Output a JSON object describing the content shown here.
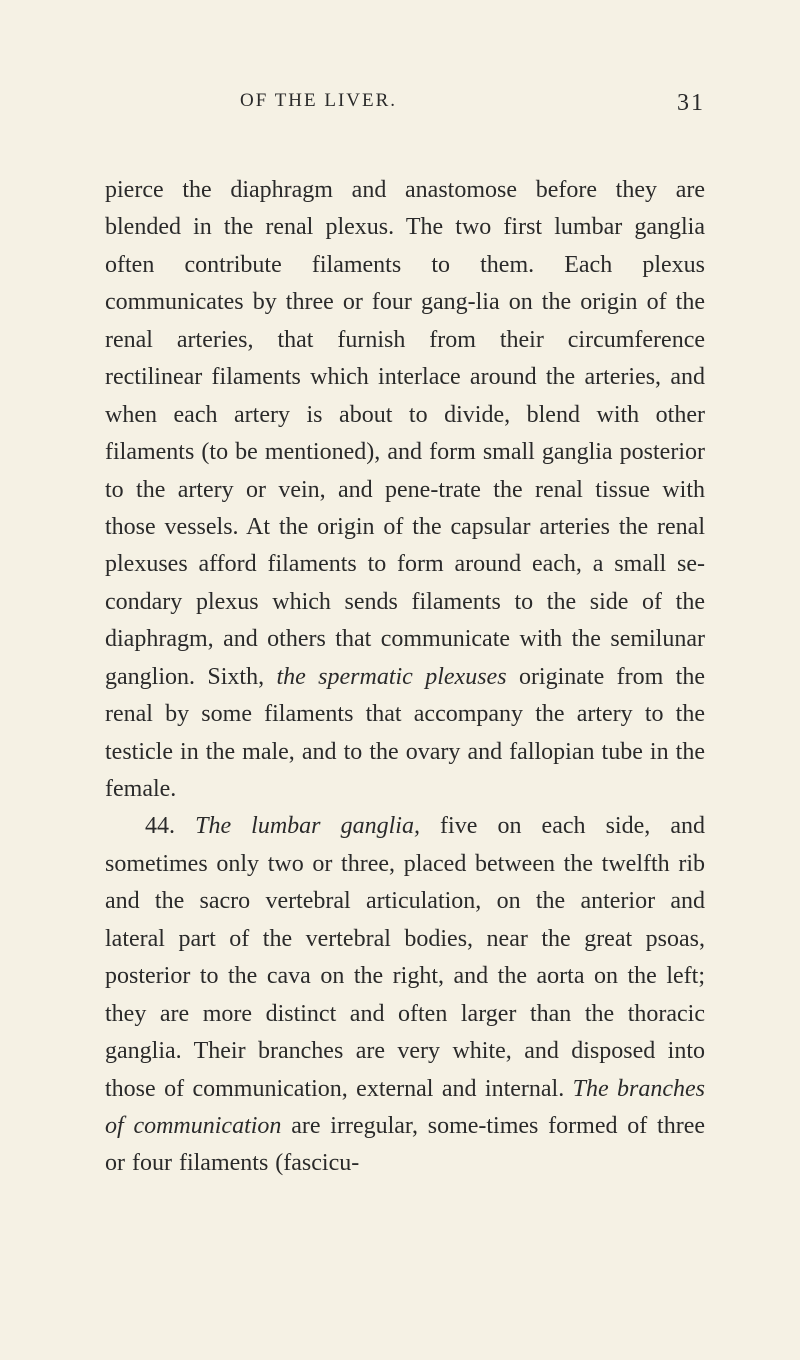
{
  "header": {
    "title": "OF THE LIVER.",
    "page_number": "31"
  },
  "paragraphs": {
    "p1_part1": "pierce the diaphragm and anastomose before they are blended in the renal plexus. The two first lumbar ganglia often contribute filaments to them. Each plexus communicates by three or four gang-lia on the origin of the renal arteries, that furnish from their circumference rectilinear filaments which interlace around the arteries, and when each artery is about to divide, blend with other filaments (to be mentioned), and form small ganglia posterior to the artery or vein, and pene-trate the renal tissue with those vessels. At the origin of the capsular arteries the renal plexuses afford filaments to form around each, a small se-condary plexus which sends filaments to the side of the diaphragm, and others that communicate with the semilunar ganglion. Sixth, ",
    "p1_italic1": "the spermatic plexuses",
    "p1_part2": " originate from the renal by some filaments that accompany the artery to the testicle in the male, and to the ovary and fallopian tube in the female.",
    "p2_part1": "44. ",
    "p2_italic1": "The lumbar ganglia,",
    "p2_part2": " five on each side, and sometimes only two or three, placed between the twelfth rib and the sacro vertebral articulation, on the anterior and lateral part of the vertebral bodies, near the great psoas, posterior to the cava on the right, and the aorta on the left; they are more distinct and often larger than the thoracic ganglia. Their branches are very white, and disposed into those of communication, external and internal. ",
    "p2_italic2": "The branches of communication",
    "p2_part3": " are irregular, some-times formed of three or four filaments (fascicu-"
  },
  "colors": {
    "background": "#f5f1e4",
    "text": "#2a2a2a"
  },
  "typography": {
    "body_fontsize": 24,
    "header_fontsize": 19,
    "pagenum_fontsize": 24,
    "line_height": 1.56
  }
}
